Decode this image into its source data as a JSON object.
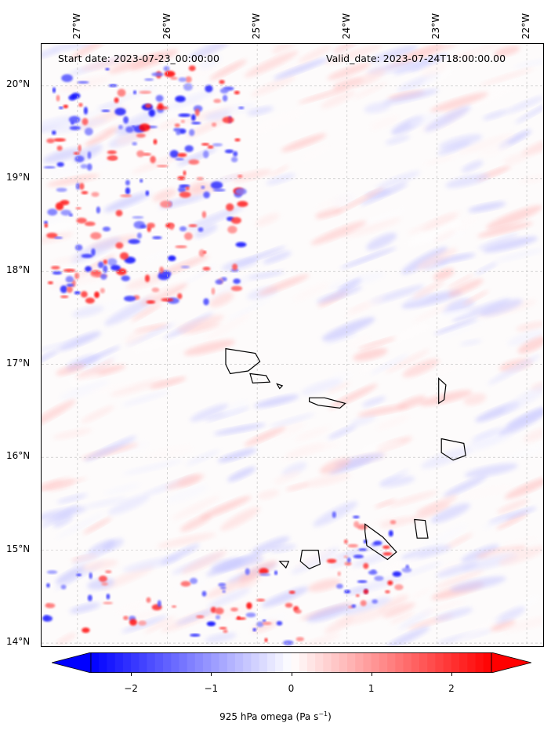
{
  "map": {
    "start_date": "Start date: 2023-07-23_00:00:00",
    "valid_date": "Valid_date: 2023-07-24T18:00:00.00",
    "lon_labels": [
      "27°W",
      "26°W",
      "25°W",
      "24°W",
      "23°W",
      "22°W"
    ],
    "lat_labels": [
      "20°N",
      "19°N",
      "18°N",
      "17°N",
      "16°N",
      "15°N",
      "14°N"
    ],
    "lon_values": [
      -27,
      -26,
      -25,
      -24,
      -23,
      -22
    ],
    "lat_values": [
      20,
      19,
      18,
      17,
      16,
      15,
      14
    ],
    "extent": {
      "lon_min": -27.4,
      "lon_max": -21.8,
      "lat_min": 13.95,
      "lat_max": 20.45
    },
    "gridlines": true,
    "islands": [
      "Santo Antão",
      "São Vicente",
      "Santa Luzia",
      "São Nicolau",
      "Sal",
      "Boa Vista",
      "Maio",
      "Santiago",
      "Fogo",
      "Brava"
    ]
  },
  "colorbar": {
    "label_main": "925 hPa omega (Pa s",
    "label_sup": "−1",
    "label_end": ")",
    "ticks": [
      "−2",
      "−1",
      "0",
      "1",
      "2"
    ],
    "tick_values": [
      -2,
      -1,
      0,
      1,
      2
    ],
    "range": [
      -2.5,
      2.5
    ],
    "colormap": "bwr",
    "extend": "both",
    "colors": {
      "neg": "#0000ff",
      "zero": "#ffffff",
      "pos": "#ff0000"
    }
  }
}
